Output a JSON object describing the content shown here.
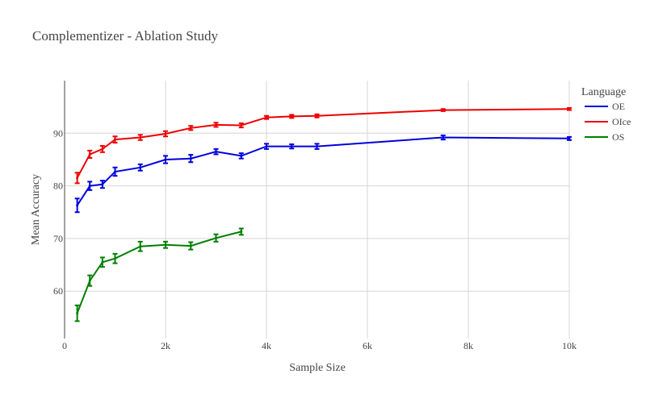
{
  "chart_data": {
    "type": "line",
    "title": "Complementizer - Ablation Study",
    "xlabel": "Sample Size",
    "ylabel": "Mean Accuracy",
    "xlim": [
      0,
      10000
    ],
    "ylim": [
      51,
      100
    ],
    "x_ticks": [
      0,
      2000,
      4000,
      6000,
      8000,
      10000
    ],
    "x_tick_labels": [
      "0",
      "2k",
      "4k",
      "6k",
      "8k",
      "10k"
    ],
    "y_ticks": [
      60,
      70,
      80,
      90
    ],
    "y_tick_labels": [
      "60",
      "70",
      "80",
      "90"
    ],
    "grid": true,
    "legend": {
      "title": "Language",
      "position": "top-right"
    },
    "series": [
      {
        "name": "OE",
        "color": "#0000dd",
        "x": [
          250,
          500,
          750,
          1000,
          1500,
          2000,
          2500,
          3000,
          3500,
          4000,
          4500,
          5000,
          7500,
          10000
        ],
        "y": [
          76.3,
          80.0,
          80.3,
          82.7,
          83.5,
          85.0,
          85.2,
          86.5,
          85.7,
          87.5,
          87.5,
          87.5,
          89.2,
          89.0
        ],
        "err": [
          1.3,
          0.8,
          0.7,
          0.8,
          0.6,
          0.7,
          0.7,
          0.5,
          0.5,
          0.5,
          0.4,
          0.5,
          0.4,
          0.3
        ]
      },
      {
        "name": "OIce",
        "color": "#ee0000",
        "x": [
          250,
          500,
          750,
          1000,
          1500,
          2000,
          2500,
          3000,
          3500,
          4000,
          4500,
          5000,
          7500,
          10000
        ],
        "y": [
          81.5,
          86.0,
          87.0,
          88.8,
          89.2,
          89.9,
          91.0,
          91.6,
          91.5,
          93.0,
          93.2,
          93.3,
          94.4,
          94.6
        ],
        "err": [
          1.0,
          0.7,
          0.6,
          0.6,
          0.5,
          0.5,
          0.4,
          0.4,
          0.4,
          0.3,
          0.3,
          0.3,
          0.2,
          0.2
        ]
      },
      {
        "name": "OS",
        "color": "#007f00",
        "x": [
          250,
          500,
          750,
          1000,
          1500,
          2000,
          2500,
          3000,
          3500
        ],
        "y": [
          55.8,
          62.0,
          65.5,
          66.2,
          68.5,
          68.8,
          68.6,
          70.1,
          71.3
        ],
        "err": [
          1.5,
          1.0,
          0.9,
          0.9,
          0.9,
          0.6,
          0.7,
          0.7,
          0.6
        ]
      }
    ]
  }
}
